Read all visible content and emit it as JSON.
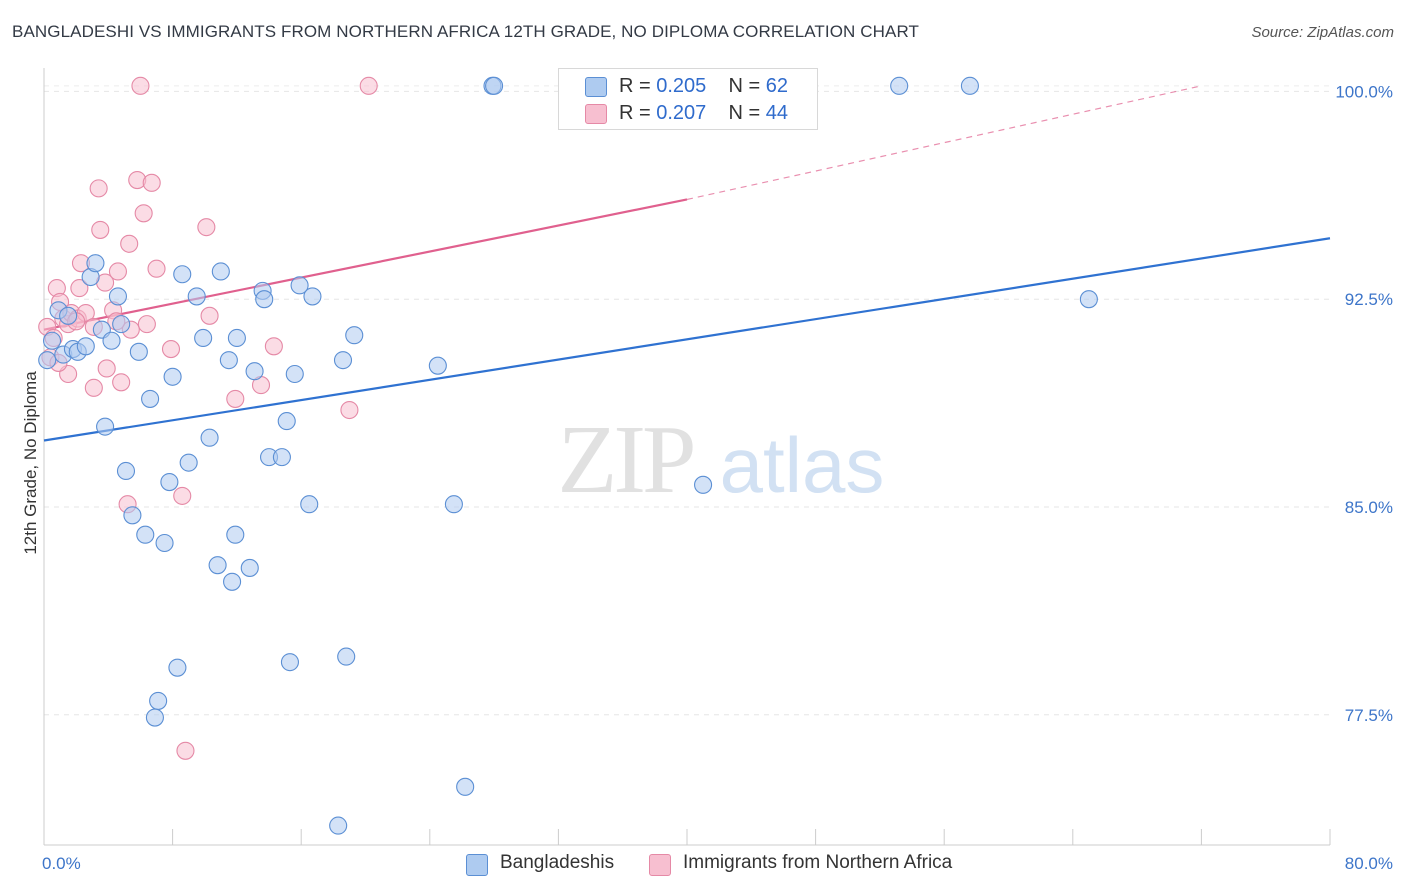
{
  "title": "BANGLADESHI VS IMMIGRANTS FROM NORTHERN AFRICA 12TH GRADE, NO DIPLOMA CORRELATION CHART",
  "source": "Source: ZipAtlas.com",
  "watermark": {
    "zip": "ZIP",
    "atlas": "atlas"
  },
  "legend": {
    "r_label": "R =",
    "n_label": "N =",
    "rows": [
      {
        "r": "0.205",
        "n": "62",
        "fill": "#aecbf0",
        "stroke": "#5b8fd4"
      },
      {
        "r": "0.207",
        "n": "44",
        "fill": "#f7bfd0",
        "stroke": "#e589a6"
      }
    ]
  },
  "bottom_legend": [
    {
      "label": "Bangladeshis",
      "fill": "#aecbf0",
      "stroke": "#5b8fd4"
    },
    {
      "label": "Immigrants from Northern Africa",
      "fill": "#f7bfd0",
      "stroke": "#e589a6"
    }
  ],
  "chart_data": {
    "type": "scatter",
    "title": "BANGLADESHI VS IMMIGRANTS FROM NORTHERN AFRICA 12TH GRADE, NO DIPLOMA CORRELATION CHART",
    "xlabel": "",
    "ylabel": "12th Grade, No Diploma",
    "xlim": [
      0,
      80
    ],
    "ylim": [
      72.8,
      100.7
    ],
    "x_tick_labels": [
      {
        "value": 0,
        "label": "0.0%"
      },
      {
        "value": 80,
        "label": "80.0%"
      }
    ],
    "y_tick_labels": [
      {
        "value": 100,
        "label": "100.0%"
      },
      {
        "value": 92.5,
        "label": "92.5%"
      },
      {
        "value": 85,
        "label": "85.0%"
      },
      {
        "value": 77.5,
        "label": "77.5%"
      }
    ],
    "x_minor_ticks": [
      0,
      8,
      16,
      24,
      32,
      40,
      48,
      56,
      64,
      72,
      80
    ],
    "grid": true,
    "series": [
      {
        "name": "Bangladeshis",
        "color": "#5b8fd4",
        "fill": "#aecbf0",
        "r": 0.205,
        "n": 62,
        "trend": {
          "x0": 0,
          "y0": 87.4,
          "x1": 80,
          "y1": 94.7,
          "color": "#2f72d1"
        },
        "points": [
          [
            0.2,
            90.3
          ],
          [
            0.5,
            91.0
          ],
          [
            0.9,
            92.1
          ],
          [
            1.2,
            90.5
          ],
          [
            1.5,
            91.9
          ],
          [
            1.8,
            90.7
          ],
          [
            2.1,
            90.6
          ],
          [
            2.6,
            90.8
          ],
          [
            2.9,
            93.3
          ],
          [
            3.2,
            93.8
          ],
          [
            3.6,
            91.4
          ],
          [
            3.8,
            87.9
          ],
          [
            4.2,
            91.0
          ],
          [
            4.6,
            92.6
          ],
          [
            4.8,
            91.6
          ],
          [
            5.1,
            86.3
          ],
          [
            5.5,
            84.7
          ],
          [
            5.9,
            90.6
          ],
          [
            6.3,
            84.0
          ],
          [
            6.6,
            88.9
          ],
          [
            7.1,
            78.0
          ],
          [
            6.9,
            77.4
          ],
          [
            7.5,
            83.7
          ],
          [
            7.8,
            85.9
          ],
          [
            8.0,
            89.7
          ],
          [
            8.3,
            79.2
          ],
          [
            8.6,
            93.4
          ],
          [
            9.0,
            86.6
          ],
          [
            9.5,
            92.6
          ],
          [
            9.9,
            91.1
          ],
          [
            10.3,
            87.5
          ],
          [
            10.8,
            82.9
          ],
          [
            11.0,
            93.5
          ],
          [
            11.5,
            90.3
          ],
          [
            12.0,
            91.1
          ],
          [
            11.7,
            82.3
          ],
          [
            11.9,
            84.0
          ],
          [
            12.8,
            82.8
          ],
          [
            13.1,
            89.9
          ],
          [
            13.6,
            92.8
          ],
          [
            13.7,
            92.5
          ],
          [
            14.0,
            86.8
          ],
          [
            14.8,
            86.8
          ],
          [
            15.1,
            88.1
          ],
          [
            15.3,
            79.4
          ],
          [
            15.6,
            89.8
          ],
          [
            15.9,
            93.0
          ],
          [
            16.5,
            85.1
          ],
          [
            16.7,
            92.6
          ],
          [
            18.3,
            73.5
          ],
          [
            18.6,
            90.3
          ],
          [
            18.8,
            79.6
          ],
          [
            19.3,
            91.2
          ],
          [
            24.5,
            90.1
          ],
          [
            25.5,
            85.1
          ],
          [
            26.2,
            74.9
          ],
          [
            27.9,
            100.2
          ],
          [
            28.0,
            100.2
          ],
          [
            41.0,
            85.8
          ],
          [
            53.2,
            100.2
          ],
          [
            57.6,
            100.2
          ],
          [
            65.0,
            92.5
          ]
        ]
      },
      {
        "name": "Immigrants from Northern Africa",
        "color": "#e589a6",
        "fill": "#f7bfd0",
        "r": 0.207,
        "n": 44,
        "trend": {
          "x0": 0,
          "y0": 91.4,
          "x1": 40,
          "y1": 96.1,
          "x2": 72,
          "y2": 100.2,
          "color": "#e0608e"
        },
        "points": [
          [
            0.2,
            91.5
          ],
          [
            0.4,
            90.4
          ],
          [
            0.6,
            91.1
          ],
          [
            0.8,
            92.9
          ],
          [
            1.0,
            92.4
          ],
          [
            1.2,
            91.8
          ],
          [
            1.5,
            91.6
          ],
          [
            1.5,
            89.8
          ],
          [
            1.7,
            92.0
          ],
          [
            2.1,
            91.8
          ],
          [
            2.2,
            92.9
          ],
          [
            2.3,
            93.8
          ],
          [
            2.6,
            92.0
          ],
          [
            3.1,
            91.5
          ],
          [
            3.1,
            89.3
          ],
          [
            3.4,
            96.5
          ],
          [
            3.5,
            95.0
          ],
          [
            3.8,
            93.1
          ],
          [
            3.9,
            90.0
          ],
          [
            4.3,
            92.1
          ],
          [
            4.6,
            93.5
          ],
          [
            4.8,
            89.5
          ],
          [
            5.2,
            85.1
          ],
          [
            5.3,
            94.5
          ],
          [
            5.4,
            91.4
          ],
          [
            5.8,
            96.8
          ],
          [
            6.2,
            95.6
          ],
          [
            6.4,
            91.6
          ],
          [
            6.7,
            96.7
          ],
          [
            7.0,
            93.6
          ],
          [
            7.9,
            90.7
          ],
          [
            8.6,
            85.4
          ],
          [
            8.8,
            76.2
          ],
          [
            10.1,
            95.1
          ],
          [
            10.3,
            91.9
          ],
          [
            11.9,
            88.9
          ],
          [
            13.5,
            89.4
          ],
          [
            14.3,
            90.8
          ],
          [
            19.0,
            88.5
          ],
          [
            6.0,
            100.2
          ],
          [
            20.2,
            100.2
          ],
          [
            0.9,
            90.2
          ],
          [
            2.0,
            91.7
          ],
          [
            4.5,
            91.7
          ]
        ]
      }
    ]
  }
}
